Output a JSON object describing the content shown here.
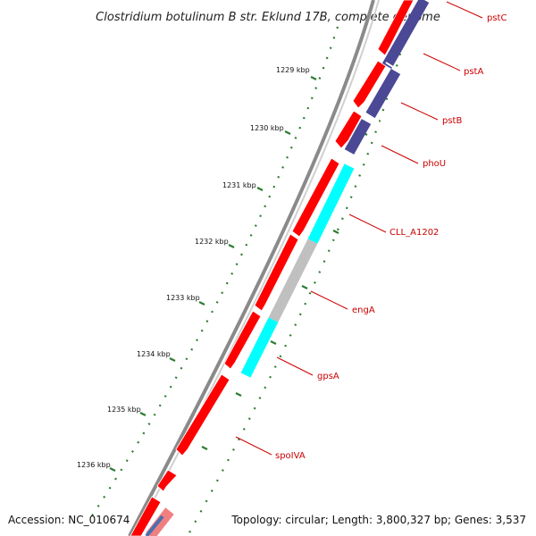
{
  "title": "Clostridium botulinum B str. Eklund 17B, complete genome",
  "footer": {
    "accession": "Accession: NC_010674",
    "topology": "Topology: circular; Length: 3,800,327 bp; Genes: 3,537"
  },
  "kbp_ticks": [
    "1229 kbp",
    "1230 kbp",
    "1231 kbp",
    "1232 kbp",
    "1233 kbp",
    "1234 kbp",
    "1235 kbp",
    "1236 kbp"
  ],
  "genes": [
    {
      "name": "pstC",
      "color": "#cc0000"
    },
    {
      "name": "pstA",
      "color": "#cc0000"
    },
    {
      "name": "pstB",
      "color": "#cc0000"
    },
    {
      "name": "phoU",
      "color": "#cc0000"
    },
    {
      "name": "CLL_A1202",
      "color": "#cc0000"
    },
    {
      "name": "engA",
      "color": "#cc0000"
    },
    {
      "name": "gpsA",
      "color": "#cc0000"
    },
    {
      "name": "spoIVA",
      "color": "#cc0000"
    }
  ],
  "colors": {
    "cds_red": "#ff0000",
    "cog_purple": "#4b4896",
    "cog_cyan": "#00ffff",
    "cog_gray": "#c0c0c0",
    "backbone": "#8a8a8a",
    "tick_green": "#2e7d32"
  }
}
